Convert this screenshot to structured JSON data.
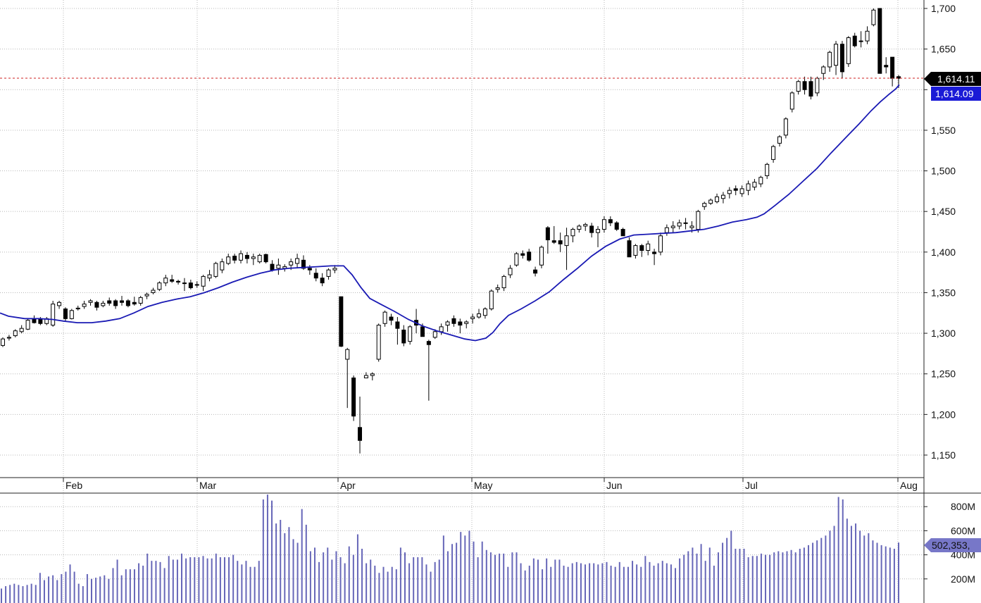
{
  "chart_data": [
    {
      "type": "candlestick",
      "title": "",
      "months": [
        "Feb",
        "Mar",
        "Apr",
        "May",
        "Jun",
        "Jul",
        "Aug"
      ],
      "y_ticks": [
        "1,150",
        "1,200",
        "1,250",
        "1,300",
        "1,350",
        "1,400",
        "1,450",
        "1,500",
        "1,550",
        "1,600",
        "1,650",
        "1,700"
      ],
      "ylim": [
        1120,
        1705
      ],
      "grid": true,
      "last_price_label": "1,614.11",
      "last_price": 1614.11,
      "moving_average_label": "1,614.09",
      "moving_average_last": 1614.09,
      "colors": {
        "up": "#ffffff",
        "down": "#000000",
        "ma": "#1a1ab4",
        "ma_badge": "#1a1ad6",
        "price_line": "#cc2222",
        "volume": "#6666b8",
        "volume_badge": "#7777c8"
      },
      "candles": [
        [
          1285,
          1295,
          1283,
          1293
        ],
        [
          1294,
          1298,
          1291,
          1295
        ],
        [
          1297,
          1305,
          1295,
          1303
        ],
        [
          1302,
          1310,
          1300,
          1306
        ],
        [
          1305,
          1318,
          1304,
          1316
        ],
        [
          1318,
          1322,
          1312,
          1313
        ],
        [
          1318,
          1320,
          1310,
          1312
        ],
        [
          1312,
          1320,
          1310,
          1318
        ],
        [
          1310,
          1340,
          1308,
          1336
        ],
        [
          1334,
          1340,
          1330,
          1338
        ],
        [
          1330,
          1332,
          1314,
          1318
        ],
        [
          1318,
          1330,
          1317,
          1328
        ],
        [
          1330,
          1334,
          1328,
          1331
        ],
        [
          1333,
          1340,
          1330,
          1336
        ],
        [
          1338,
          1342,
          1334,
          1340
        ],
        [
          1338,
          1340,
          1328,
          1332
        ],
        [
          1334,
          1340,
          1332,
          1337
        ],
        [
          1340,
          1344,
          1334,
          1337
        ],
        [
          1340,
          1342,
          1330,
          1334
        ],
        [
          1340,
          1346,
          1334,
          1338
        ],
        [
          1340,
          1342,
          1332,
          1334
        ],
        [
          1338,
          1345,
          1334,
          1336
        ],
        [
          1337,
          1346,
          1334,
          1344
        ],
        [
          1346,
          1350,
          1342,
          1348
        ],
        [
          1350,
          1356,
          1348,
          1353
        ],
        [
          1354,
          1364,
          1352,
          1362
        ],
        [
          1362,
          1372,
          1358,
          1368
        ],
        [
          1366,
          1372,
          1362,
          1364
        ],
        [
          1364,
          1366,
          1360,
          1363
        ],
        [
          1362,
          1368,
          1352,
          1362
        ],
        [
          1362,
          1366,
          1354,
          1356
        ],
        [
          1360,
          1364,
          1356,
          1360
        ],
        [
          1358,
          1372,
          1352,
          1370
        ],
        [
          1368,
          1378,
          1364,
          1372
        ],
        [
          1370,
          1388,
          1368,
          1386
        ],
        [
          1378,
          1392,
          1374,
          1388
        ],
        [
          1386,
          1398,
          1384,
          1394
        ],
        [
          1395,
          1398,
          1386,
          1390
        ],
        [
          1390,
          1402,
          1386,
          1398
        ],
        [
          1396,
          1400,
          1386,
          1392
        ],
        [
          1392,
          1398,
          1384,
          1394
        ],
        [
          1388,
          1398,
          1386,
          1396
        ],
        [
          1397,
          1398,
          1386,
          1388
        ],
        [
          1385,
          1390,
          1376,
          1378
        ],
        [
          1380,
          1392,
          1372,
          1384
        ],
        [
          1380,
          1385,
          1376,
          1382
        ],
        [
          1384,
          1392,
          1378,
          1388
        ],
        [
          1386,
          1398,
          1380,
          1392
        ],
        [
          1390,
          1396,
          1378,
          1380
        ],
        [
          1380,
          1384,
          1372,
          1378
        ],
        [
          1374,
          1380,
          1364,
          1368
        ],
        [
          1368,
          1374,
          1358,
          1362
        ],
        [
          1370,
          1380,
          1366,
          1378
        ],
        [
          1378,
          1384,
          1374,
          1380
        ],
        [
          1345,
          1345,
          1283,
          1284
        ],
        [
          1268,
          1282,
          1208,
          1280
        ],
        [
          1245,
          1248,
          1192,
          1198
        ],
        [
          1184,
          1222,
          1152,
          1168
        ],
        [
          1245,
          1252,
          1245,
          1248
        ],
        [
          1248,
          1252,
          1242,
          1250
        ],
        [
          1268,
          1312,
          1265,
          1310
        ],
        [
          1312,
          1328,
          1308,
          1326
        ],
        [
          1320,
          1324,
          1310,
          1316
        ],
        [
          1314,
          1320,
          1286,
          1306
        ],
        [
          1304,
          1310,
          1284,
          1288
        ],
        [
          1290,
          1310,
          1286,
          1308
        ],
        [
          1316,
          1330,
          1300,
          1310
        ],
        [
          1308,
          1312,
          1298,
          1296
        ],
        [
          1290,
          1292,
          1217,
          1286
        ],
        [
          1295,
          1305,
          1293,
          1302
        ],
        [
          1302,
          1312,
          1298,
          1308
        ],
        [
          1310,
          1316,
          1302,
          1314
        ],
        [
          1318,
          1322,
          1308,
          1312
        ],
        [
          1314,
          1318,
          1300,
          1310
        ],
        [
          1312,
          1316,
          1306,
          1314
        ],
        [
          1318,
          1324,
          1312,
          1320
        ],
        [
          1320,
          1330,
          1318,
          1324
        ],
        [
          1322,
          1332,
          1318,
          1330
        ],
        [
          1330,
          1354,
          1328,
          1352
        ],
        [
          1354,
          1360,
          1350,
          1356
        ],
        [
          1356,
          1372,
          1352,
          1370
        ],
        [
          1372,
          1384,
          1368,
          1380
        ],
        [
          1384,
          1400,
          1382,
          1398
        ],
        [
          1398,
          1402,
          1392,
          1396
        ],
        [
          1400,
          1404,
          1388,
          1390
        ],
        [
          1378,
          1382,
          1370,
          1374
        ],
        [
          1384,
          1408,
          1380,
          1406
        ],
        [
          1430,
          1432,
          1398,
          1415
        ],
        [
          1414,
          1432,
          1410,
          1412
        ],
        [
          1414,
          1424,
          1400,
          1410
        ],
        [
          1408,
          1430,
          1378,
          1420
        ],
        [
          1420,
          1430,
          1412,
          1428
        ],
        [
          1428,
          1434,
          1424,
          1432
        ],
        [
          1432,
          1436,
          1426,
          1434
        ],
        [
          1432,
          1436,
          1418,
          1424
        ],
        [
          1424,
          1432,
          1406,
          1428
        ],
        [
          1428,
          1444,
          1424,
          1440
        ],
        [
          1440,
          1444,
          1432,
          1436
        ],
        [
          1436,
          1438,
          1426,
          1428
        ],
        [
          1428,
          1430,
          1420,
          1420
        ],
        [
          1414,
          1418,
          1396,
          1394
        ],
        [
          1396,
          1410,
          1392,
          1408
        ],
        [
          1408,
          1410,
          1394,
          1402
        ],
        [
          1402,
          1414,
          1396,
          1410
        ],
        [
          1400,
          1404,
          1384,
          1398
        ],
        [
          1400,
          1424,
          1396,
          1420
        ],
        [
          1424,
          1434,
          1420,
          1430
        ],
        [
          1430,
          1438,
          1424,
          1432
        ],
        [
          1432,
          1440,
          1428,
          1436
        ],
        [
          1436,
          1442,
          1428,
          1436
        ],
        [
          1430,
          1438,
          1424,
          1432
        ],
        [
          1428,
          1452,
          1424,
          1450
        ],
        [
          1456,
          1462,
          1452,
          1460
        ],
        [
          1460,
          1466,
          1458,
          1464
        ],
        [
          1462,
          1472,
          1460,
          1468
        ],
        [
          1466,
          1474,
          1460,
          1470
        ],
        [
          1472,
          1480,
          1466,
          1476
        ],
        [
          1478,
          1482,
          1470,
          1476
        ],
        [
          1472,
          1482,
          1468,
          1478
        ],
        [
          1476,
          1488,
          1470,
          1484
        ],
        [
          1480,
          1490,
          1476,
          1486
        ],
        [
          1484,
          1494,
          1480,
          1492
        ],
        [
          1494,
          1510,
          1490,
          1508
        ],
        [
          1514,
          1532,
          1510,
          1530
        ],
        [
          1534,
          1544,
          1530,
          1542
        ],
        [
          1544,
          1566,
          1540,
          1564
        ],
        [
          1576,
          1598,
          1572,
          1596
        ],
        [
          1598,
          1612,
          1594,
          1610
        ],
        [
          1610,
          1616,
          1594,
          1600
        ],
        [
          1610,
          1616,
          1588,
          1592
        ],
        [
          1596,
          1616,
          1592,
          1614
        ],
        [
          1620,
          1630,
          1612,
          1628
        ],
        [
          1628,
          1648,
          1622,
          1646
        ],
        [
          1630,
          1660,
          1618,
          1656
        ],
        [
          1656,
          1660,
          1614,
          1622
        ],
        [
          1632,
          1666,
          1628,
          1664
        ],
        [
          1666,
          1670,
          1652,
          1654
        ],
        [
          1660,
          1672,
          1652,
          1660
        ],
        [
          1660,
          1678,
          1656,
          1672
        ],
        [
          1680,
          1700,
          1678,
          1698
        ],
        [
          1700,
          1700,
          1620,
          1620
        ],
        [
          1630,
          1640,
          1620,
          1628
        ],
        [
          1640,
          1640,
          1604,
          1614
        ],
        [
          1616,
          1618,
          1602,
          1614
        ]
      ],
      "moving_average": [
        [
          0,
          1325
        ],
        [
          12,
          1321
        ],
        [
          35,
          1318
        ],
        [
          55,
          1318
        ],
        [
          75,
          1317
        ],
        [
          90,
          1315
        ],
        [
          110,
          1313
        ],
        [
          130,
          1313
        ],
        [
          150,
          1315
        ],
        [
          170,
          1318
        ],
        [
          190,
          1325
        ],
        [
          210,
          1333
        ],
        [
          230,
          1338
        ],
        [
          250,
          1342
        ],
        [
          270,
          1345
        ],
        [
          290,
          1350
        ],
        [
          310,
          1356
        ],
        [
          330,
          1363
        ],
        [
          350,
          1369
        ],
        [
          370,
          1374
        ],
        [
          390,
          1378
        ],
        [
          410,
          1380
        ],
        [
          430,
          1381
        ],
        [
          450,
          1382
        ],
        [
          470,
          1383
        ],
        [
          488,
          1383
        ],
        [
          500,
          1372
        ],
        [
          512,
          1357
        ],
        [
          525,
          1343
        ],
        [
          540,
          1336
        ],
        [
          560,
          1327
        ],
        [
          580,
          1317
        ],
        [
          600,
          1309
        ],
        [
          620,
          1303
        ],
        [
          640,
          1298
        ],
        [
          660,
          1293
        ],
        [
          675,
          1291
        ],
        [
          690,
          1294
        ],
        [
          700,
          1301
        ],
        [
          710,
          1312
        ],
        [
          722,
          1322
        ],
        [
          740,
          1330
        ],
        [
          760,
          1340
        ],
        [
          780,
          1351
        ],
        [
          800,
          1366
        ],
        [
          820,
          1380
        ],
        [
          840,
          1395
        ],
        [
          860,
          1407
        ],
        [
          880,
          1416
        ],
        [
          900,
          1421
        ],
        [
          920,
          1422
        ],
        [
          940,
          1423
        ],
        [
          960,
          1424
        ],
        [
          980,
          1426
        ],
        [
          1000,
          1428
        ],
        [
          1020,
          1432
        ],
        [
          1040,
          1437
        ],
        [
          1060,
          1440
        ],
        [
          1075,
          1443
        ],
        [
          1085,
          1447
        ],
        [
          1100,
          1457
        ],
        [
          1120,
          1471
        ],
        [
          1140,
          1487
        ],
        [
          1160,
          1503
        ],
        [
          1180,
          1522
        ],
        [
          1200,
          1540
        ],
        [
          1220,
          1558
        ],
        [
          1237,
          1574
        ],
        [
          1250,
          1585
        ],
        [
          1262,
          1594
        ],
        [
          1272,
          1601
        ],
        [
          1277,
          1606
        ]
      ]
    },
    {
      "type": "bar",
      "title": "",
      "y_ticks": [
        "200M",
        "400M",
        "600M",
        "800M"
      ],
      "ylim": [
        0,
        950
      ],
      "last_volume_label": "502,353,",
      "values": [
        120,
        140,
        150,
        160,
        150,
        140,
        150,
        160,
        150,
        250,
        190,
        220,
        230,
        190,
        240,
        260,
        320,
        260,
        160,
        140,
        240,
        200,
        210,
        220,
        230,
        200,
        290,
        360,
        230,
        280,
        280,
        280,
        330,
        310,
        410,
        350,
        350,
        340,
        290,
        390,
        360,
        360,
        410,
        370,
        380,
        380,
        380,
        390,
        370,
        370,
        410,
        380,
        380,
        380,
        400,
        350,
        320,
        350,
        300,
        300,
        350,
        860,
        900,
        850,
        660,
        690,
        580,
        630,
        530,
        500,
        780,
        650,
        430,
        460,
        340,
        420,
        460,
        360,
        430,
        380,
        330,
        470,
        400,
        570,
        450,
        330,
        360,
        310,
        250,
        300,
        260,
        300,
        280,
        460,
        420,
        330,
        380,
        380,
        380,
        320,
        260,
        340,
        360,
        560,
        430,
        490,
        500,
        590,
        560,
        600,
        510,
        380,
        510,
        440,
        420,
        400,
        410,
        410,
        300,
        420,
        420,
        330,
        270,
        310,
        370,
        360,
        280,
        370,
        300,
        360,
        360,
        310,
        300,
        330,
        340,
        330,
        320,
        330,
        330,
        320,
        330,
        340,
        310,
        300,
        340,
        300,
        300,
        350,
        320,
        300,
        390,
        340,
        310,
        330,
        350,
        330,
        320,
        290,
        370,
        400,
        430,
        460,
        410,
        490,
        350,
        460,
        310,
        420,
        500,
        540,
        600,
        450,
        450,
        450,
        380,
        390,
        390,
        410,
        400,
        400,
        420,
        430,
        420,
        430,
        440,
        420,
        450,
        460,
        480,
        500,
        520,
        540,
        560,
        600,
        640,
        880,
        860,
        700,
        640,
        660,
        600,
        560,
        580,
        520,
        500,
        480,
        470,
        460,
        450,
        502
      ]
    }
  ]
}
